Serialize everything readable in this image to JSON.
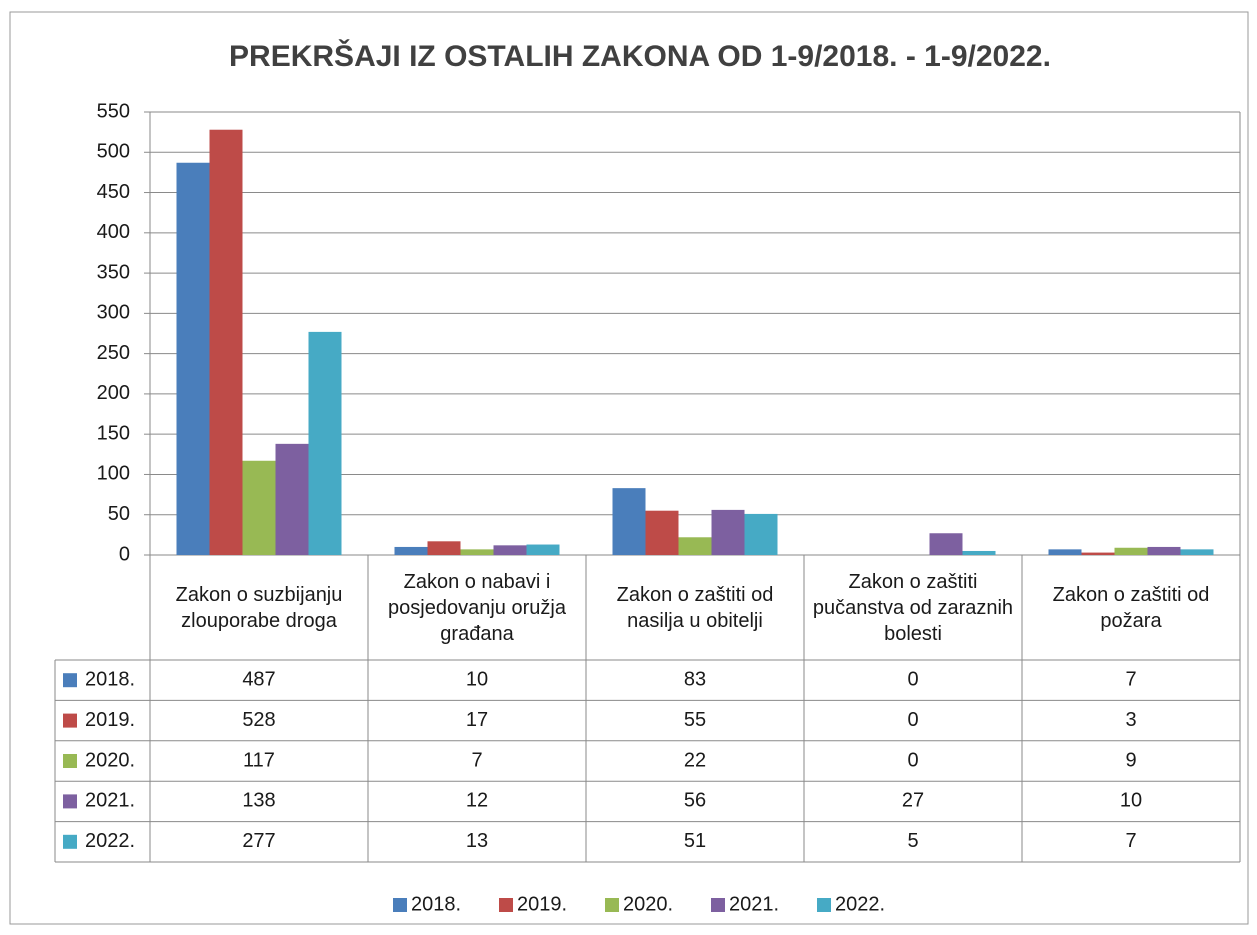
{
  "chart_data": {
    "type": "bar",
    "title": "PREKRŠAJI IZ OSTALIH ZAKONA OD 1-9/2018. - 1-9/2022.",
    "categories": [
      "Zakon o suzbijanju zlouporabe droga",
      "Zakon o nabavi i posjedovanju oružja građana",
      "Zakon o zaštiti od nasilja u obitelji",
      "Zakon o zaštiti pučanstva od zaraznih bolesti",
      "Zakon o zaštiti od požara"
    ],
    "series": [
      {
        "name": "2018.",
        "color": "#4a7ebb",
        "values": [
          487,
          10,
          83,
          0,
          7
        ]
      },
      {
        "name": "2019.",
        "color": "#be4b48",
        "values": [
          528,
          17,
          55,
          0,
          3
        ]
      },
      {
        "name": "2020.",
        "color": "#98b954",
        "values": [
          117,
          7,
          22,
          0,
          9
        ]
      },
      {
        "name": "2021.",
        "color": "#7d60a0",
        "values": [
          138,
          12,
          56,
          27,
          10
        ]
      },
      {
        "name": "2022.",
        "color": "#46aac5",
        "values": [
          277,
          13,
          51,
          5,
          7
        ]
      }
    ],
    "ylim": [
      0,
      550
    ],
    "yticks": [
      0,
      50,
      100,
      150,
      200,
      250,
      300,
      350,
      400,
      450,
      500,
      550
    ],
    "grid": true
  }
}
